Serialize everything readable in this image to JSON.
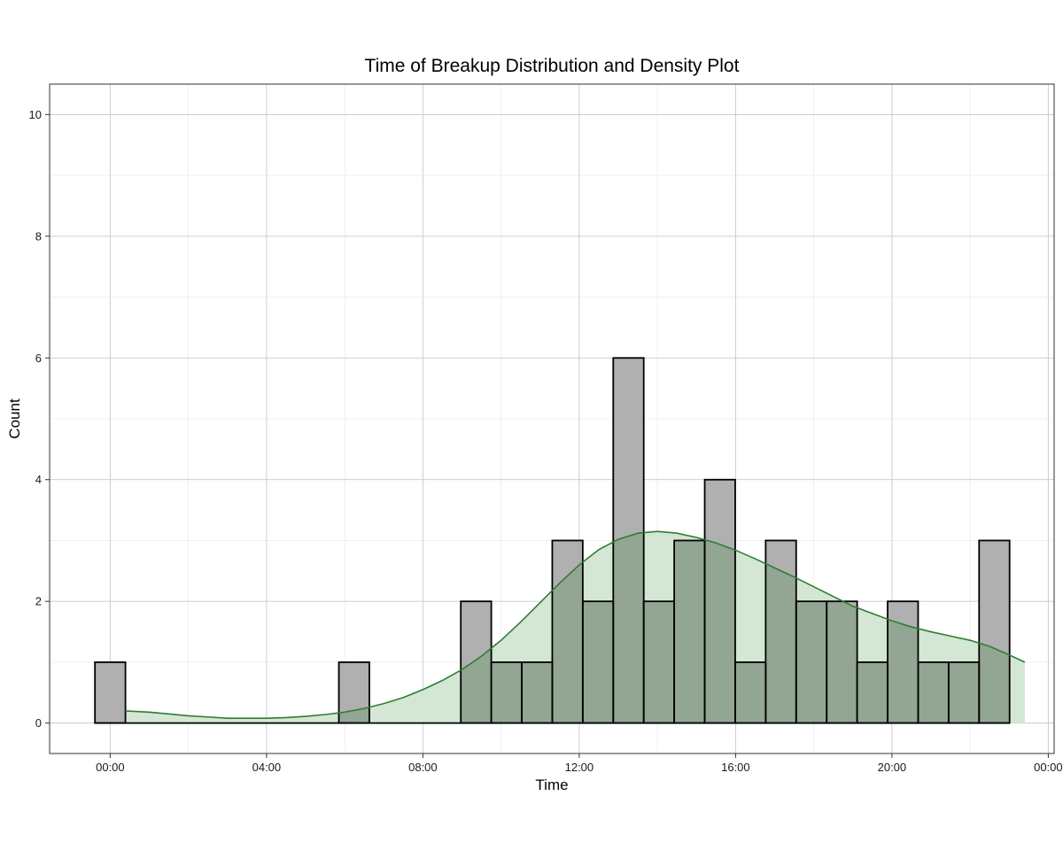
{
  "chart_data": {
    "type": "bar",
    "title": "Time of Breakup Distribution and Density Plot",
    "xlabel": "Time",
    "ylabel": "Count",
    "x_unit": "hours since 00:00",
    "x_ticks": [
      {
        "value": 0,
        "label": "00:00"
      },
      {
        "value": 4,
        "label": "04:00"
      },
      {
        "value": 8,
        "label": "08:00"
      },
      {
        "value": 12,
        "label": "12:00"
      },
      {
        "value": 16,
        "label": "16:00"
      },
      {
        "value": 20,
        "label": "20:00"
      },
      {
        "value": 24,
        "label": "00:00"
      }
    ],
    "y_ticks": [
      0,
      2,
      4,
      6,
      8,
      10
    ],
    "xlim": [
      -1.55,
      24.15
    ],
    "ylim": [
      -0.5,
      10.5
    ],
    "grid": true,
    "histogram": {
      "name": "Count",
      "bin_start": -0.39,
      "bin_width": 0.78,
      "values": [
        1,
        0,
        0,
        0,
        0,
        0,
        0,
        0,
        1,
        0,
        0,
        0,
        2,
        1,
        1,
        3,
        2,
        6,
        2,
        3,
        4,
        1,
        3,
        2,
        2,
        1,
        2,
        1,
        1,
        3
      ],
      "fill": "#b0b0b0",
      "stroke": "#000000"
    },
    "density": {
      "name": "Density",
      "fill": "#d4e6d4",
      "line_color": "#2e7d32",
      "overlap_fill": "#93a593",
      "x": [
        0.39,
        1.0,
        1.5,
        2.0,
        2.5,
        3.0,
        3.5,
        4.0,
        4.5,
        5.0,
        5.5,
        6.0,
        6.5,
        7.0,
        7.5,
        8.0,
        8.5,
        9.0,
        9.5,
        10.0,
        10.5,
        11.0,
        11.5,
        12.0,
        12.5,
        13.0,
        13.5,
        14.0,
        14.5,
        15.0,
        15.5,
        16.0,
        16.5,
        17.0,
        17.5,
        18.0,
        18.5,
        19.0,
        19.5,
        20.0,
        20.5,
        21.0,
        21.5,
        22.0,
        22.5,
        23.0,
        23.4
      ],
      "y": [
        0.2,
        0.18,
        0.15,
        0.12,
        0.1,
        0.08,
        0.08,
        0.08,
        0.09,
        0.11,
        0.14,
        0.18,
        0.24,
        0.32,
        0.42,
        0.55,
        0.7,
        0.88,
        1.1,
        1.36,
        1.66,
        1.98,
        2.3,
        2.6,
        2.85,
        3.02,
        3.12,
        3.15,
        3.12,
        3.05,
        2.96,
        2.84,
        2.7,
        2.55,
        2.4,
        2.24,
        2.08,
        1.92,
        1.8,
        1.68,
        1.58,
        1.5,
        1.43,
        1.36,
        1.26,
        1.12,
        1.0
      ]
    }
  }
}
